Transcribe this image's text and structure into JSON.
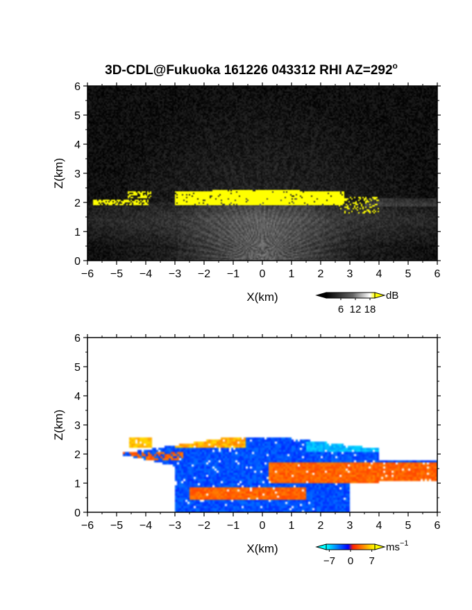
{
  "title": "3D-CDL@Fukuoka 161226 043312 RHI AZ=292",
  "title_superscript": "o",
  "chart_data": [
    {
      "type": "heatmap",
      "panel": "backscatter",
      "xlabel": "X(km)",
      "ylabel": "Z(km)",
      "xlim": [
        -6,
        6
      ],
      "ylim": [
        0,
        6
      ],
      "xticks": [
        "-6",
        "-5",
        "-4",
        "-3",
        "-2",
        "-1",
        "0",
        "1",
        "2",
        "3",
        "4",
        "5",
        "6"
      ],
      "yticks": [
        "0",
        "1",
        "2",
        "3",
        "4",
        "5",
        "6"
      ],
      "colorbar": {
        "unit": "dB",
        "ticks": [
          "6",
          "12",
          "18"
        ],
        "range": [
          0,
          20
        ],
        "colors": [
          "#000000",
          "#ffffff",
          "#ffff00"
        ]
      },
      "features": {
        "cloud_layer_top_km": 2.5,
        "cloud_layer_base_km": 1.9,
        "cloud_layer_extent_km": [
          -3,
          2.8
        ],
        "left_patches_km": [
          [
            -5.8,
            -4.0
          ],
          [
            -4.5,
            -3.9
          ]
        ],
        "beam_fan_origin_km": [
          0,
          0
        ],
        "saturated_value_db": 20
      }
    },
    {
      "type": "heatmap",
      "panel": "doppler_velocity",
      "xlabel": "X(km)",
      "ylabel": "Z(km)",
      "xlim": [
        -6,
        6
      ],
      "ylim": [
        0,
        6
      ],
      "xticks": [
        "-6",
        "-5",
        "-4",
        "-3",
        "-2",
        "-1",
        "0",
        "1",
        "2",
        "3",
        "4",
        "5",
        "6"
      ],
      "yticks": [
        "0",
        "1",
        "2",
        "3",
        "4",
        "5",
        "6"
      ],
      "colorbar": {
        "unit": "ms",
        "unit_superscript": "-1",
        "ticks": [
          "-7",
          "0",
          "7"
        ],
        "range": [
          -8,
          8
        ],
        "colors": [
          "#00ffff",
          "#0000ff",
          "#ff0000",
          "#ffff00"
        ]
      },
      "features": {
        "echo_top_km": 2.6,
        "positive_band_right_km": [
          1.0,
          1.7
        ],
        "negative_core_km": [
          0.9,
          2.0
        ],
        "positive_patches_upper_km": [
          [
            -4.4,
            -3.8
          ],
          [
            -2.9,
            -0.5
          ]
        ],
        "cyan_top_right_km": [
          1.5,
          6.0
        ]
      }
    }
  ]
}
